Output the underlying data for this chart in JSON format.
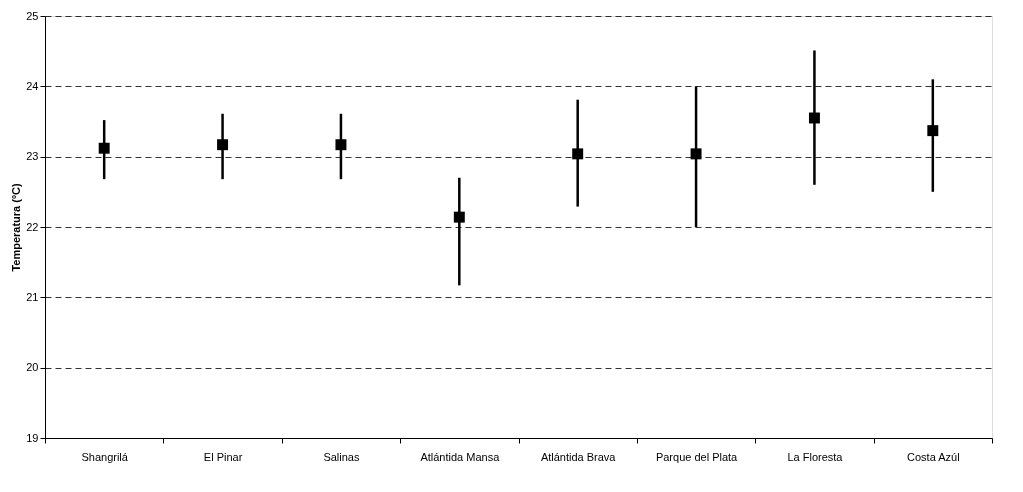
{
  "chart_data": {
    "type": "scatter",
    "ylabel": "Temperatura (ºC)",
    "categories": [
      "Shangrilá",
      "El Pinar",
      "Salinas",
      "Atlántida Mansa",
      "Atlántida Brava",
      "Parque del Plata",
      "La Floresta",
      "Costa Azúl"
    ],
    "values": [
      23.12,
      23.17,
      23.17,
      22.14,
      23.04,
      23.04,
      23.55,
      23.37
    ],
    "errors": [
      [
        22.68,
        23.52
      ],
      [
        22.68,
        23.61
      ],
      [
        22.68,
        23.61
      ],
      [
        21.17,
        22.7
      ],
      [
        22.29,
        23.81
      ],
      [
        22.0,
        24.0
      ],
      [
        22.6,
        24.51
      ],
      [
        22.5,
        24.1
      ]
    ],
    "color": "#000000",
    "marker": "square",
    "ylim": [
      19,
      25
    ],
    "yticks": [
      19,
      20,
      21,
      22,
      23,
      24,
      25
    ],
    "grid": "y",
    "line_style": "dashed"
  }
}
